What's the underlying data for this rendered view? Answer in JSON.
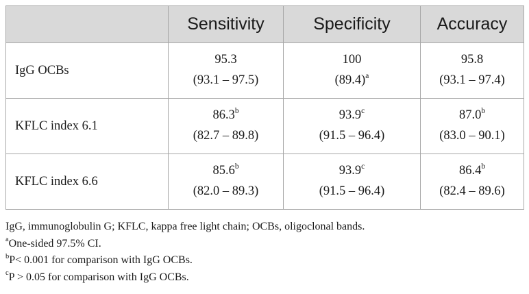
{
  "table": {
    "headers": [
      "",
      "Sensitivity",
      "Specificity",
      "Accuracy"
    ],
    "rows": [
      {
        "label": "IgG OCBs",
        "cells": [
          {
            "value": "95.3",
            "sup": "",
            "ci": "(93.1 – 97.5)",
            "ci_sup": ""
          },
          {
            "value": "100",
            "sup": "",
            "ci": "(89.4)",
            "ci_sup": "a"
          },
          {
            "value": "95.8",
            "sup": "",
            "ci": "(93.1 – 97.4)",
            "ci_sup": ""
          }
        ]
      },
      {
        "label": "KFLC index 6.1",
        "cells": [
          {
            "value": "86.3",
            "sup": "b",
            "ci": "(82.7 – 89.8)",
            "ci_sup": ""
          },
          {
            "value": "93.9",
            "sup": "c",
            "ci": "(91.5 – 96.4)",
            "ci_sup": ""
          },
          {
            "value": "87.0",
            "sup": "b",
            "ci": "(83.0 – 90.1)",
            "ci_sup": ""
          }
        ]
      },
      {
        "label": "KFLC index 6.6",
        "cells": [
          {
            "value": "85.6",
            "sup": "b",
            "ci": "(82.0 – 89.3)",
            "ci_sup": ""
          },
          {
            "value": "93.9",
            "sup": "c",
            "ci": "(91.5 – 96.4)",
            "ci_sup": ""
          },
          {
            "value": "86.4",
            "sup": "b",
            "ci": "(82.4 – 89.6)",
            "ci_sup": ""
          }
        ]
      }
    ]
  },
  "footnotes": {
    "abbreviations": "IgG, immunoglobulin G; KFLC, kappa free light chain; OCBs, oligoclonal bands.",
    "notes": [
      {
        "mark": "a",
        "text": "One-sided 97.5% CI."
      },
      {
        "mark": "b",
        "text": "P< 0.001 for comparison with IgG OCBs."
      },
      {
        "mark": "c",
        "text": "P > 0.05 for comparison with IgG OCBs."
      }
    ]
  },
  "colors": {
    "header_bg": "#d9d9d9",
    "border": "#a6a6a6",
    "text": "#1a1a1a"
  }
}
